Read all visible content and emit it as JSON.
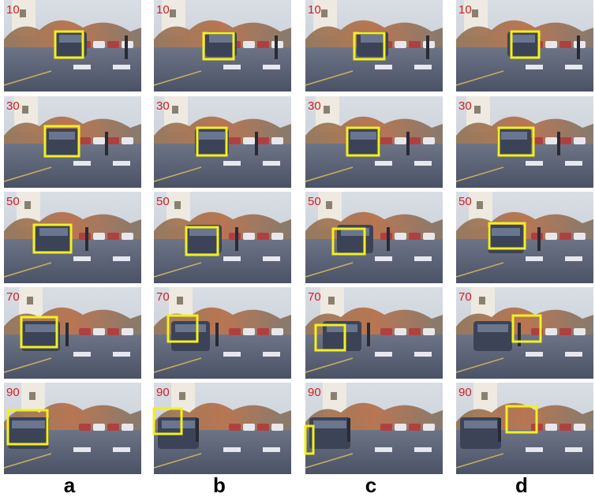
{
  "frame_labels": [
    "10",
    "30",
    "50",
    "70",
    "90"
  ],
  "column_labels": [
    "a",
    "b",
    "c",
    "d"
  ]
}
